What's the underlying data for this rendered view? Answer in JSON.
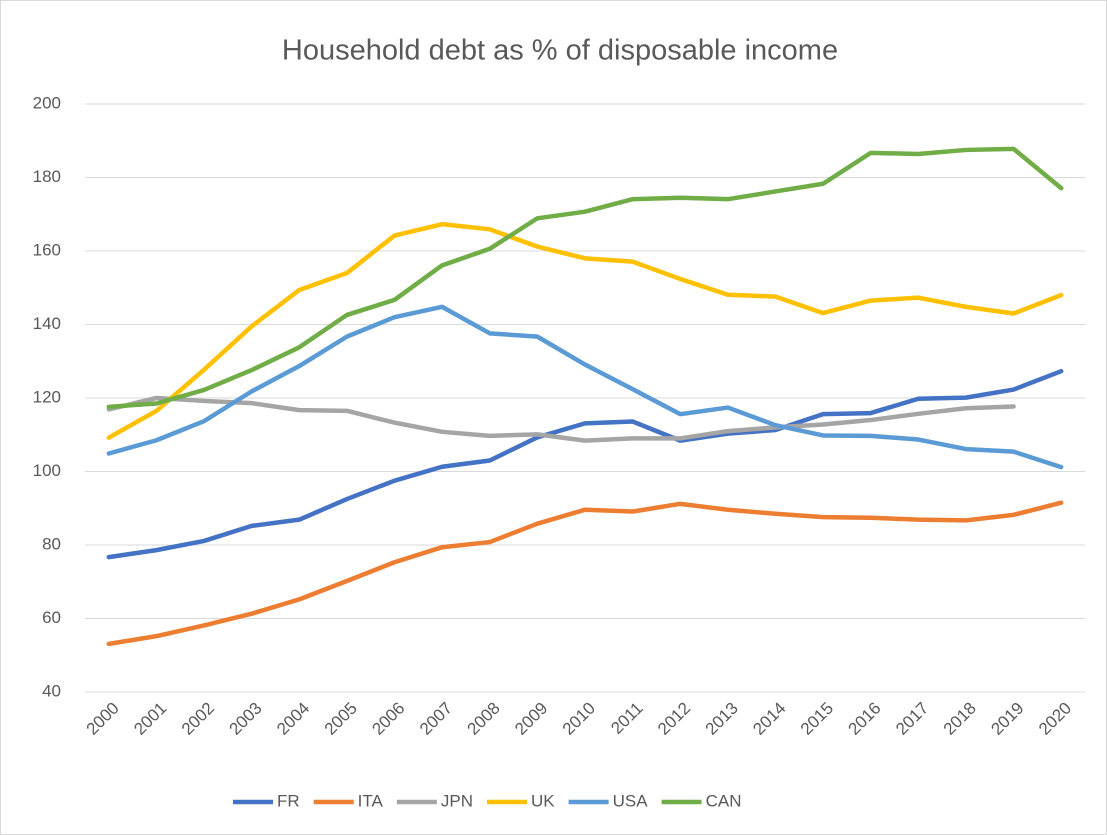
{
  "chart_data": {
    "type": "line",
    "title": "Household debt as % of disposable income",
    "categories": [
      "2000",
      "2001",
      "2002",
      "2003",
      "2004",
      "2005",
      "2006",
      "2007",
      "2008",
      "2009",
      "2010",
      "2011",
      "2012",
      "2013",
      "2014",
      "2015",
      "2016",
      "2017",
      "2018",
      "2019",
      "2020"
    ],
    "series": [
      {
        "name": "FR",
        "color": "#4472c4",
        "values": [
          76.7,
          78.6,
          81.1,
          85.2,
          86.9,
          92.5,
          97.5,
          101.3,
          103,
          109.3,
          113.1,
          113.6,
          108.4,
          110.3,
          111.3,
          115.6,
          115.9,
          119.8,
          120.1,
          122.3,
          127.3
        ]
      },
      {
        "name": "ITA",
        "color": "#ed7d31",
        "values": [
          53.1,
          55.2,
          58.1,
          61.3,
          65.2,
          70.2,
          75.3,
          79.4,
          80.8,
          85.8,
          89.6,
          89.1,
          91.2,
          89.6,
          88.5,
          87.6,
          87.4,
          86.9,
          86.7,
          88.2,
          91.5
        ]
      },
      {
        "name": "JPN",
        "color": "#a5a5a5",
        "values": [
          116.9,
          120,
          119.2,
          118.6,
          116.7,
          116.5,
          113.3,
          110.8,
          109.7,
          110.1,
          108.4,
          109,
          109,
          111,
          112,
          112.8,
          114,
          115.7,
          117.2,
          117.7,
          null
        ]
      },
      {
        "name": "UK",
        "color": "#ffc000",
        "values": [
          109.2,
          116.5,
          127.7,
          139.5,
          149.4,
          154,
          164.2,
          167.3,
          165.9,
          161.2,
          158,
          157.1,
          152.4,
          148.1,
          147.6,
          143.1,
          146.5,
          147.3,
          144.8,
          143,
          148
        ]
      },
      {
        "name": "USA",
        "color": "#5b9bd5",
        "values": [
          104.9,
          108.5,
          113.7,
          121.8,
          128.7,
          136.7,
          142,
          144.8,
          137.6,
          136.7,
          129.1,
          122.4,
          115.6,
          117.4,
          112.6,
          109.8,
          109.7,
          108.7,
          106.1,
          105.4,
          101.2
        ]
      },
      {
        "name": "CAN",
        "color": "#70ad47",
        "values": [
          117.6,
          118.5,
          122.2,
          127.6,
          133.8,
          142.6,
          146.7,
          156.1,
          160.6,
          168.9,
          170.7,
          174.1,
          174.5,
          174.1,
          176.2,
          178.3,
          186.7,
          186.4,
          187.5,
          187.8,
          177.1
        ]
      }
    ],
    "ylim": [
      40,
      200
    ],
    "yticks": [
      40,
      60,
      80,
      100,
      120,
      140,
      160,
      180,
      200
    ],
    "grid": true,
    "legend": "bottom"
  }
}
